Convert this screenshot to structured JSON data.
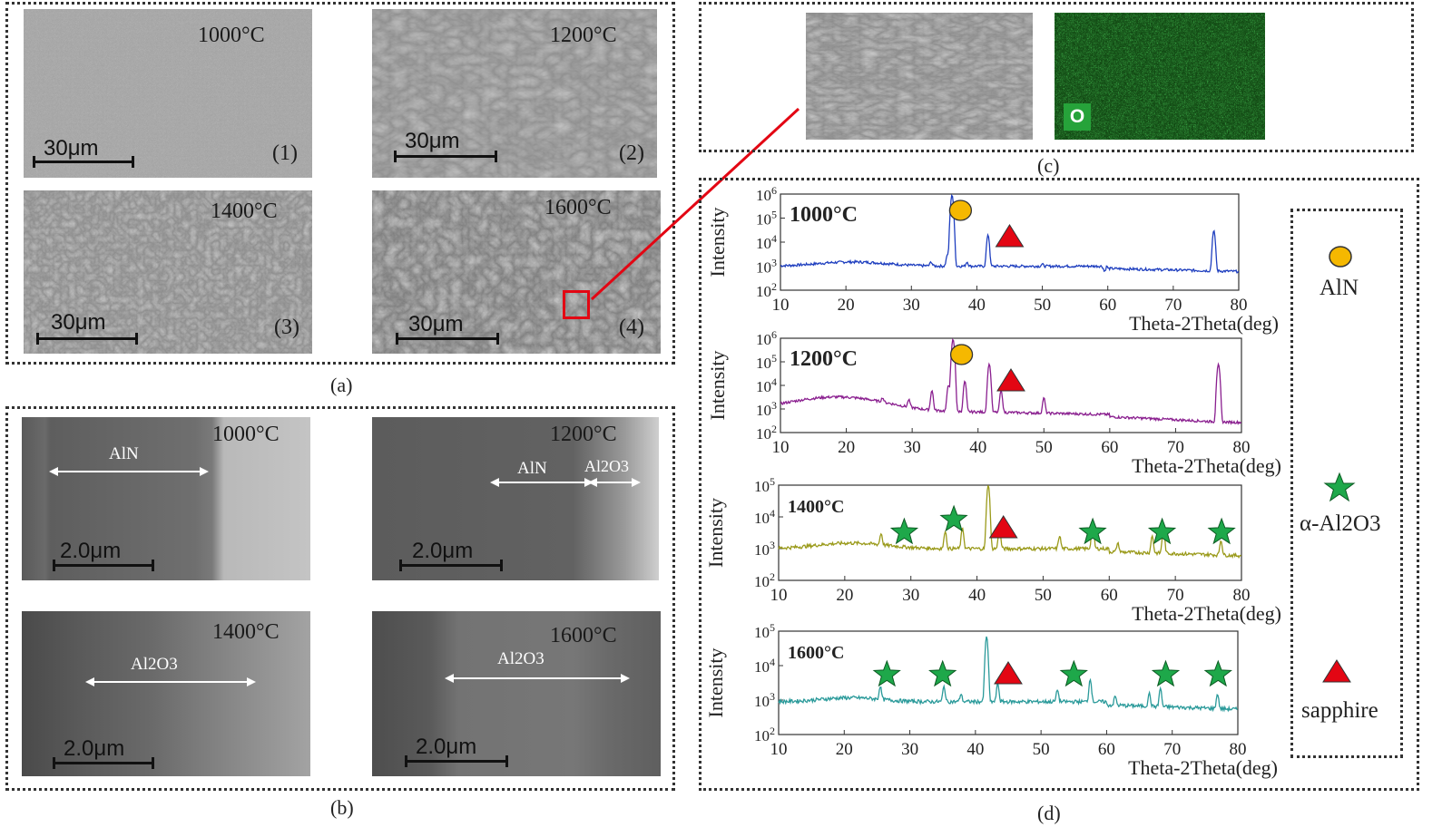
{
  "panel_a": {
    "caption": "(a)",
    "images": [
      {
        "temp": "1000°C",
        "scale": "30μm",
        "num": "(1)"
      },
      {
        "temp": "1200°C",
        "scale": "30μm",
        "num": "(2)"
      },
      {
        "temp": "1400°C",
        "scale": "30μm",
        "num": "(3)"
      },
      {
        "temp": "1600°C",
        "scale": "30μm",
        "num": "(4)"
      }
    ]
  },
  "panel_b": {
    "caption": "(b)",
    "images": [
      {
        "temp": "1000°C",
        "scale": "2.0μm",
        "labels": [
          "AlN"
        ]
      },
      {
        "temp": "1200°C",
        "scale": "2.0μm",
        "labels": [
          "AlN",
          "Al2O3"
        ]
      },
      {
        "temp": "1400°C",
        "scale": "2.0μm",
        "labels": [
          "Al2O3"
        ]
      },
      {
        "temp": "1600°C",
        "scale": "2.0μm",
        "labels": [
          "Al2O3"
        ]
      }
    ]
  },
  "panel_c": {
    "caption": "(c)",
    "map_label": "O"
  },
  "panel_d": {
    "caption": "(d)",
    "legend": [
      {
        "label": "AlN",
        "marker": "circle",
        "color": "#f5b800"
      },
      {
        "label": "α-Al2O3",
        "marker": "star",
        "color": "#1ea84a"
      },
      {
        "label": "sapphire",
        "marker": "triangle",
        "color": "#e30613"
      }
    ]
  },
  "chart_data": [
    {
      "type": "line",
      "title": "1000°C",
      "xlabel": "Theta-2Theta(deg)",
      "ylabel": "Intensity",
      "xlim": [
        10,
        80
      ],
      "ylim": [
        100,
        1000000
      ],
      "yscale": "log",
      "xticks": [
        10,
        20,
        30,
        40,
        50,
        60,
        70,
        80
      ],
      "yticks": [
        "10^2",
        "10^3",
        "10^4",
        "10^5",
        "10^6"
      ],
      "color": "#1f3fbf",
      "peaks": [
        {
          "x": 33,
          "y": 1500
        },
        {
          "x": 35.5,
          "y": 3000
        },
        {
          "x": 36.2,
          "y": 900000
        },
        {
          "x": 38.5,
          "y": 1500
        },
        {
          "x": 41.7,
          "y": 20000
        },
        {
          "x": 50,
          "y": 1200
        },
        {
          "x": 59.5,
          "y": 600
        },
        {
          "x": 76.2,
          "y": 30000
        }
      ],
      "markers": [
        {
          "type": "circle",
          "x": 37.5
        },
        {
          "type": "triangle",
          "x": 45
        }
      ]
    },
    {
      "type": "line",
      "title": "1200°C",
      "xlabel": "Theta-2Theta(deg)",
      "ylabel": "Intensity",
      "xlim": [
        10,
        80
      ],
      "ylim": [
        100,
        1000000
      ],
      "yscale": "log",
      "xticks": [
        10,
        20,
        30,
        40,
        50,
        60,
        70,
        80
      ],
      "yticks": [
        "10^2",
        "10^3",
        "10^4",
        "10^5",
        "10^6"
      ],
      "color": "#8a1f8f",
      "peaks": [
        {
          "x": 25.5,
          "y": 3000
        },
        {
          "x": 29.5,
          "y": 2500
        },
        {
          "x": 33,
          "y": 6000
        },
        {
          "x": 35.5,
          "y": 10000
        },
        {
          "x": 36.2,
          "y": 900000
        },
        {
          "x": 38,
          "y": 15000
        },
        {
          "x": 41.7,
          "y": 80000
        },
        {
          "x": 43.5,
          "y": 6000
        },
        {
          "x": 50,
          "y": 3000
        },
        {
          "x": 76.5,
          "y": 80000
        }
      ],
      "markers": [
        {
          "type": "circle",
          "x": 37.5
        },
        {
          "type": "triangle",
          "x": 45
        }
      ]
    },
    {
      "type": "line",
      "title": "1400°C",
      "xlabel": "Theta-2Theta(deg)",
      "ylabel": "Intensity",
      "xlim": [
        10,
        80
      ],
      "ylim": [
        100,
        100000
      ],
      "yscale": "log",
      "xticks": [
        10,
        20,
        30,
        40,
        50,
        60,
        70,
        80
      ],
      "yticks": [
        "10^2",
        "10^3",
        "10^4",
        "10^5"
      ],
      "color": "#9a9a1a",
      "peaks": [
        {
          "x": 25.5,
          "y": 3000
        },
        {
          "x": 35.2,
          "y": 3500
        },
        {
          "x": 37.8,
          "y": 4500
        },
        {
          "x": 41.7,
          "y": 100000
        },
        {
          "x": 43.4,
          "y": 4000
        },
        {
          "x": 52.5,
          "y": 2500
        },
        {
          "x": 57.5,
          "y": 6000
        },
        {
          "x": 61.3,
          "y": 1500
        },
        {
          "x": 66.5,
          "y": 2500
        },
        {
          "x": 68.2,
          "y": 4000
        },
        {
          "x": 76.9,
          "y": 1800
        }
      ],
      "markers": [
        {
          "type": "star",
          "x": 29
        },
        {
          "type": "star",
          "x": 36.5
        },
        {
          "type": "triangle",
          "x": 44
        },
        {
          "type": "star",
          "x": 57.5
        },
        {
          "type": "star",
          "x": 68
        },
        {
          "type": "star",
          "x": 77
        }
      ]
    },
    {
      "type": "line",
      "title": "1600°C",
      "xlabel": "Theta-2Theta(deg)",
      "ylabel": "Intensity",
      "xlim": [
        10,
        80
      ],
      "ylim": [
        100,
        100000
      ],
      "yscale": "log",
      "xticks": [
        10,
        20,
        30,
        40,
        50,
        60,
        70,
        80
      ],
      "yticks": [
        "10^2",
        "10^3",
        "10^4",
        "10^5"
      ],
      "color": "#2a9a9a",
      "peaks": [
        {
          "x": 25.5,
          "y": 2500
        },
        {
          "x": 35.2,
          "y": 2500
        },
        {
          "x": 37.8,
          "y": 1500
        },
        {
          "x": 41.7,
          "y": 70000
        },
        {
          "x": 43.4,
          "y": 3000
        },
        {
          "x": 52.5,
          "y": 2000
        },
        {
          "x": 57.5,
          "y": 4000
        },
        {
          "x": 61.3,
          "y": 1300
        },
        {
          "x": 66.5,
          "y": 1600
        },
        {
          "x": 68.2,
          "y": 2200
        },
        {
          "x": 76.9,
          "y": 1500
        }
      ],
      "markers": [
        {
          "type": "star",
          "x": 26.5
        },
        {
          "type": "star",
          "x": 35
        },
        {
          "type": "triangle",
          "x": 45
        },
        {
          "type": "star",
          "x": 55
        },
        {
          "type": "star",
          "x": 69
        },
        {
          "type": "star",
          "x": 77
        }
      ]
    }
  ]
}
